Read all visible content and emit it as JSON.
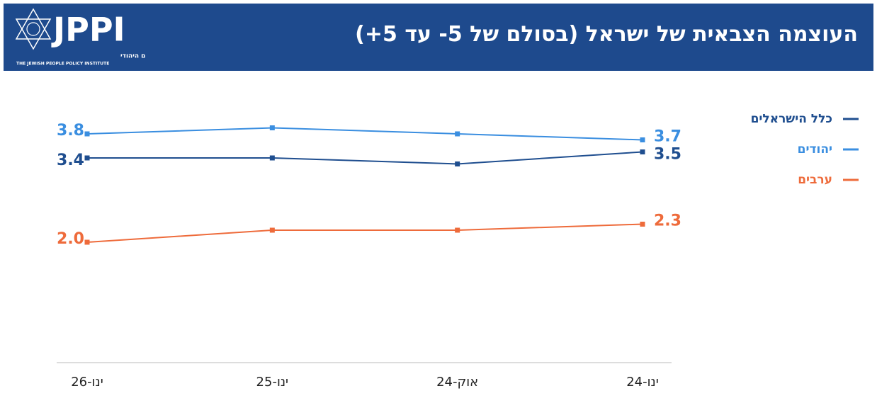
{
  "header": {
    "title": "העוצמה הצבאית של ישראל (בסולם של 5- עד 5+)",
    "logo_text": "JPPI",
    "logo_subtitle_he": "המכון למדיניות העם היהודי",
    "logo_subtitle_en": "THE JEWISH PEOPLE POLICY INSTITUTE"
  },
  "chart_data": {
    "type": "line",
    "categories": [
      "ינו-26",
      "ינו-25",
      "אוק-24",
      "ינו-24"
    ],
    "series": [
      {
        "name": "כלל הישראלים",
        "color": "#1f4e8f",
        "values": [
          3.4,
          3.4,
          3.3,
          3.5
        ],
        "value_labels": [
          "3.4",
          null,
          null,
          "3.5"
        ]
      },
      {
        "name": "יהודים",
        "color": "#3a8ee0",
        "values": [
          3.8,
          3.9,
          3.8,
          3.7
        ],
        "value_labels": [
          "3.8",
          null,
          null,
          "3.7"
        ]
      },
      {
        "name": "ערבים",
        "color": "#ee6b3b",
        "values": [
          2.0,
          2.2,
          2.2,
          2.3
        ],
        "value_labels": [
          "2.0",
          null,
          null,
          "2.3"
        ]
      }
    ],
    "ylim": [
      0,
      5
    ],
    "grid": false,
    "legend": "right"
  }
}
